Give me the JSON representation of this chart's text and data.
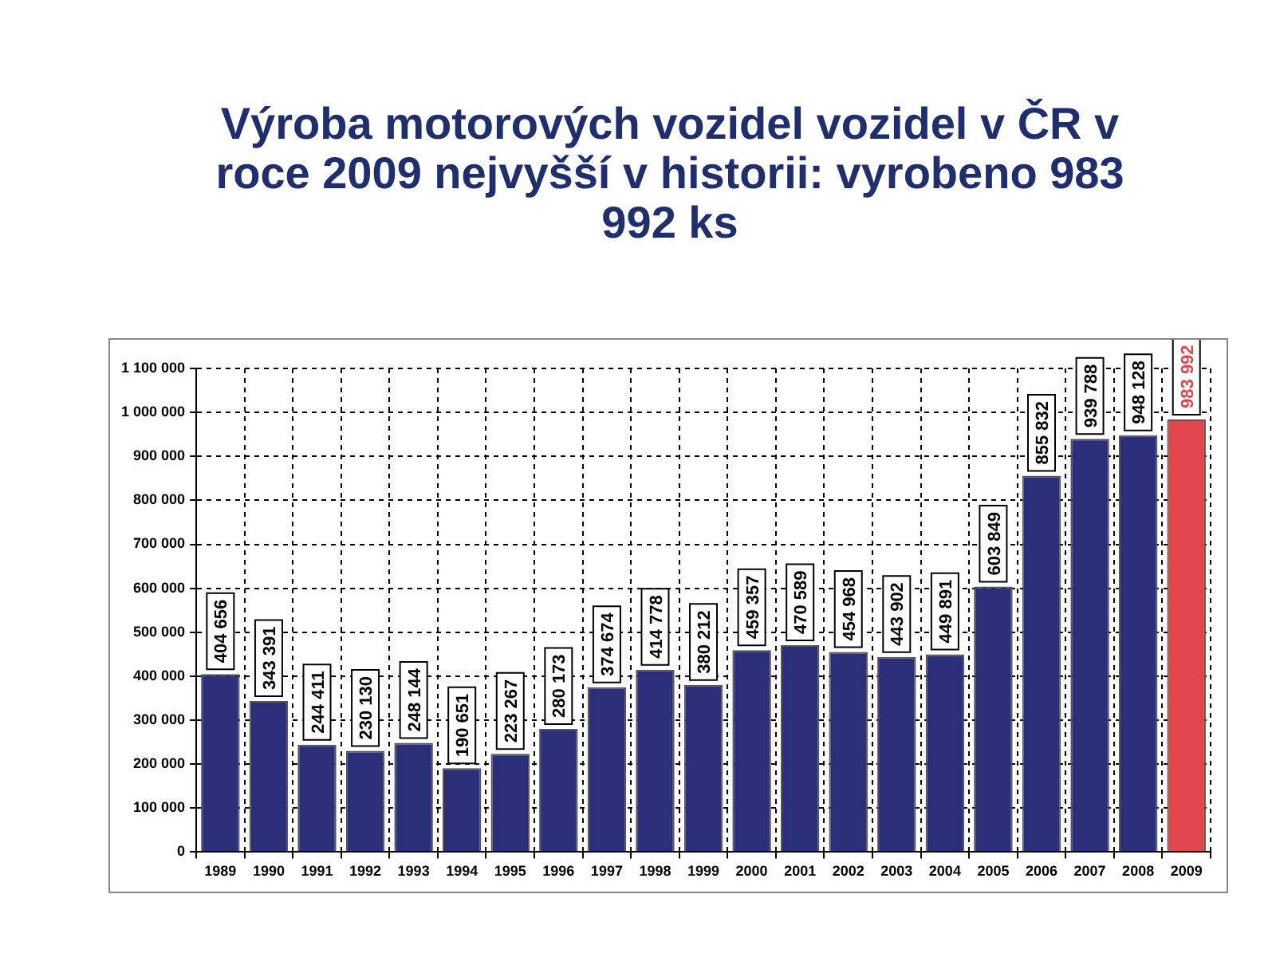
{
  "chart_data": {
    "type": "bar",
    "title": "Výroba motorových vozidel vozidel v ČR v roce 2009 nejvyšší v historii: vyrobeno 983 992 ks",
    "categories": [
      "1989",
      "1990",
      "1991",
      "1992",
      "1993",
      "1994",
      "1995",
      "1996",
      "1997",
      "1998",
      "1999",
      "2000",
      "2001",
      "2002",
      "2003",
      "2004",
      "2005",
      "2006",
      "2007",
      "2008",
      "2009"
    ],
    "values": [
      404656,
      343391,
      244411,
      230130,
      248144,
      190651,
      223267,
      280173,
      374674,
      414778,
      380212,
      459357,
      470589,
      454968,
      443902,
      449891,
      603849,
      855832,
      939788,
      948128,
      983992
    ],
    "colors": [
      "#2b2f7a",
      "#2b2f7a",
      "#2b2f7a",
      "#2b2f7a",
      "#2b2f7a",
      "#2b2f7a",
      "#2b2f7a",
      "#2b2f7a",
      "#2b2f7a",
      "#2b2f7a",
      "#2b2f7a",
      "#2b2f7a",
      "#2b2f7a",
      "#2b2f7a",
      "#2b2f7a",
      "#2b2f7a",
      "#2b2f7a",
      "#2b2f7a",
      "#2b2f7a",
      "#2b2f7a",
      "#e0474c"
    ],
    "value_labels": [
      "404 656",
      "343 391",
      "244 411",
      "230 130",
      "248 144",
      "190 651",
      "223 267",
      "280 173",
      "374 674",
      "414 778",
      "380 212",
      "459 357",
      "470 589",
      "454 968",
      "443 902",
      "449 891",
      "603 849",
      "855 832",
      "939 788",
      "948 128",
      "983 992"
    ],
    "ylim": [
      0,
      1100000
    ],
    "yticks": [
      0,
      {
        "value": 100000,
        "label": "100 000"
      },
      {
        "value": 200000,
        "label": "200 000"
      },
      {
        "value": 300000,
        "label": "300 000"
      },
      {
        "value": 400000,
        "label": "400 000"
      },
      {
        "value": 500000,
        "label": "500 000"
      },
      {
        "value": 600000,
        "label": "600 000"
      },
      {
        "value": 700000,
        "label": "700 000"
      },
      {
        "value": 800000,
        "label": "800 000"
      },
      {
        "value": 900000,
        "label": "900 000"
      },
      {
        "value": 1000000,
        "label": "1 000 000"
      },
      {
        "value": 1100000,
        "label": "1 100 000"
      }
    ],
    "grid": true,
    "legend": false
  }
}
